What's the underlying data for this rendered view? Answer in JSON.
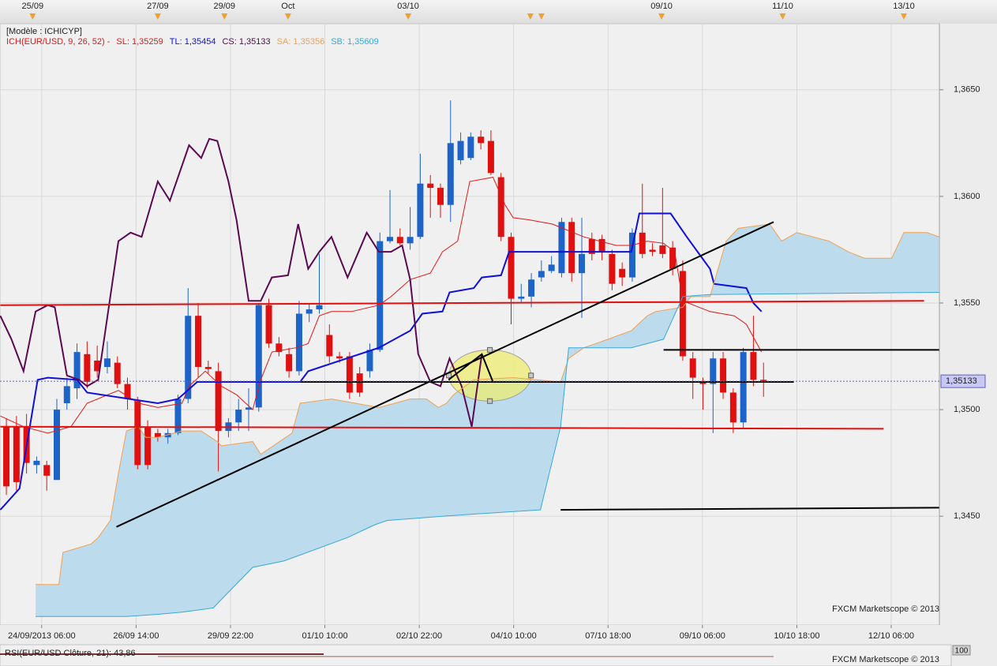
{
  "chart_data": {
    "type": "candlestick",
    "model_label": "[Modèle : ICHICYP]",
    "indicator_label": "ICH(EUR/USD, 9, 26, 52) -",
    "indicator_color": "#e01818",
    "grid": true,
    "xlim": [
      -0.63,
      92.42
    ],
    "ylim": [
      1.3399,
      1.3681
    ],
    "yticks": [
      {
        "value": 1.345,
        "label": "1,3450"
      },
      {
        "value": 1.35,
        "label": "1,3500"
      },
      {
        "value": 1.355,
        "label": "1,3550"
      },
      {
        "value": 1.36,
        "label": "1,3600"
      },
      {
        "value": 1.365,
        "label": "1,3650"
      }
    ],
    "xticks": [
      {
        "value": 3.5,
        "label": "24/09/2013 06:00"
      },
      {
        "value": 12.85,
        "label": "26/09 14:00"
      },
      {
        "value": 22.2,
        "label": "29/09 22:00"
      },
      {
        "value": 31.55,
        "label": "01/10 10:00"
      },
      {
        "value": 40.9,
        "label": "02/10 22:00"
      },
      {
        "value": 50.25,
        "label": "04/10 10:00"
      },
      {
        "value": 59.6,
        "label": "07/10 18:00"
      },
      {
        "value": 68.95,
        "label": "09/10 06:00"
      },
      {
        "value": 78.3,
        "label": "10/10 18:00"
      },
      {
        "value": 87.65,
        "label": "12/10 06:00"
      }
    ],
    "top_ticks": [
      {
        "value": 2.6,
        "label": "25/09"
      },
      {
        "value": 15.0,
        "label": "27/09"
      },
      {
        "value": 21.6,
        "label": "29/09"
      },
      {
        "value": 27.9,
        "label": "Oct"
      },
      {
        "value": 39.8,
        "label": "03/10"
      },
      {
        "value": 64.9,
        "label": "09/10"
      },
      {
        "value": 76.9,
        "label": "11/10"
      },
      {
        "value": 88.9,
        "label": "13/10"
      }
    ],
    "event_markers": [
      2.6,
      15.0,
      21.6,
      27.9,
      39.8,
      51.9,
      53.0,
      64.9,
      76.9,
      88.9
    ],
    "event_color": "#f0a030",
    "candles": {
      "up_color": "#1e64c8",
      "down_color": "#e01010",
      "open": [
        1.3492,
        1.3492,
        1.3492,
        1.3474,
        1.3474,
        1.3467,
        1.3503,
        1.351,
        1.3526,
        1.3523,
        1.352,
        1.3522,
        1.3512,
        1.3504,
        1.3492,
        1.3489,
        1.3487,
        1.3489,
        1.3505,
        1.3544,
        1.352,
        1.3518,
        1.349,
        1.3494,
        1.35,
        1.3501,
        1.3549,
        1.3531,
        1.3526,
        1.3518,
        1.3545,
        1.3547,
        1.3535,
        1.3525,
        1.3525,
        1.3517,
        1.3518,
        1.3528,
        1.3579,
        1.3581,
        1.3578,
        1.3581,
        1.3606,
        1.3604,
        1.3596,
        1.3617,
        1.3618,
        1.3628,
        1.3626,
        1.3609,
        1.3581,
        1.3552,
        1.3553,
        1.3562,
        1.3565,
        1.3564,
        1.3588,
        1.3564,
        1.358,
        1.358,
        1.3573,
        1.3566,
        1.3562,
        1.3583,
        1.3575,
        1.3577,
        1.3576,
        1.3565,
        1.3524,
        1.3513,
        1.3512,
        1.3524,
        1.3508,
        1.3494,
        1.3527,
        1.3514
      ],
      "high": [
        1.3496,
        1.3497,
        1.3498,
        1.3478,
        1.3476,
        1.3505,
        1.3515,
        1.3531,
        1.3532,
        1.353,
        1.3532,
        1.3525,
        1.3515,
        1.3506,
        1.3495,
        1.3491,
        1.3491,
        1.3507,
        1.3557,
        1.355,
        1.3523,
        1.3522,
        1.3496,
        1.3505,
        1.351,
        1.355,
        1.3552,
        1.3534,
        1.3529,
        1.3551,
        1.355,
        1.3573,
        1.354,
        1.3527,
        1.3527,
        1.352,
        1.3531,
        1.3583,
        1.3603,
        1.3585,
        1.3595,
        1.362,
        1.361,
        1.3606,
        1.3645,
        1.363,
        1.363,
        1.3631,
        1.3631,
        1.3611,
        1.3583,
        1.3559,
        1.3564,
        1.357,
        1.3572,
        1.359,
        1.359,
        1.359,
        1.3583,
        1.3582,
        1.3575,
        1.3569,
        1.3585,
        1.3606,
        1.3578,
        1.3604,
        1.3579,
        1.357,
        1.3527,
        1.3515,
        1.3527,
        1.3527,
        1.351,
        1.3529,
        1.3544,
        1.3522
      ],
      "low": [
        1.346,
        1.3462,
        1.347,
        1.347,
        1.3462,
        1.3467,
        1.35,
        1.3505,
        1.351,
        1.3515,
        1.3517,
        1.351,
        1.35,
        1.3472,
        1.3472,
        1.3485,
        1.3484,
        1.3488,
        1.3503,
        1.3515,
        1.3517,
        1.3471,
        1.3487,
        1.349,
        1.349,
        1.3499,
        1.3529,
        1.3525,
        1.3515,
        1.3516,
        1.3541,
        1.3545,
        1.3522,
        1.3522,
        1.3505,
        1.3506,
        1.3515,
        1.3527,
        1.3578,
        1.3577,
        1.3575,
        1.358,
        1.359,
        1.359,
        1.3588,
        1.3615,
        1.3617,
        1.3622,
        1.361,
        1.3579,
        1.354,
        1.355,
        1.3548,
        1.356,
        1.3564,
        1.3562,
        1.356,
        1.3543,
        1.357,
        1.357,
        1.3556,
        1.3558,
        1.356,
        1.3571,
        1.3572,
        1.3571,
        1.3563,
        1.3523,
        1.3505,
        1.35,
        1.3489,
        1.3505,
        1.3489,
        1.3491,
        1.3511,
        1.3506
      ],
      "close": [
        1.3464,
        1.3466,
        1.3475,
        1.3476,
        1.3469,
        1.35,
        1.3511,
        1.3527,
        1.3513,
        1.3518,
        1.3524,
        1.3512,
        1.3505,
        1.3474,
        1.3474,
        1.3487,
        1.3489,
        1.3505,
        1.3544,
        1.352,
        1.3519,
        1.349,
        1.3494,
        1.35,
        1.3501,
        1.3549,
        1.3531,
        1.3527,
        1.3518,
        1.3545,
        1.3547,
        1.3549,
        1.3525,
        1.3524,
        1.3508,
        1.3508,
        1.3528,
        1.3579,
        1.3581,
        1.3578,
        1.3581,
        1.3606,
        1.3604,
        1.3596,
        1.3625,
        1.3626,
        1.3628,
        1.3625,
        1.3611,
        1.3581,
        1.3552,
        1.3553,
        1.3561,
        1.3565,
        1.3568,
        1.3588,
        1.3564,
        1.3573,
        1.3573,
        1.3574,
        1.3559,
        1.3562,
        1.3583,
        1.3573,
        1.3574,
        1.3573,
        1.3566,
        1.3525,
        1.3515,
        1.3512,
        1.3524,
        1.3508,
        1.3494,
        1.3527,
        1.3514,
        1.3513
      ]
    },
    "cloud_color": "#bcdcee",
    "series": [
      {
        "name": "SL: 1,35259",
        "color": "#e01818",
        "width": 1,
        "x": [
          -0.6,
          1.7,
          4.1,
          6.4,
          8.0,
          11.1,
          13.1,
          15.0,
          17.4,
          18.1,
          19.7,
          21.3,
          22.8,
          24.4,
          25.2,
          26.3,
          28.7,
          29.9,
          31.0,
          32.2,
          34.2,
          36.9,
          38.1,
          40.0,
          42.0,
          43.2,
          44.7,
          45.9,
          48.2,
          49.4,
          50.2,
          51.8,
          54.1,
          57.2,
          60.4,
          61.9,
          63.5,
          65.1,
          66.2,
          67.0,
          69.7,
          72.1,
          73.3,
          74.8
        ],
        "values": [
          1.3497,
          1.3492,
          1.3489,
          1.3492,
          1.3503,
          1.3509,
          1.3503,
          1.3501,
          1.3503,
          1.3511,
          1.3518,
          1.3511,
          1.3507,
          1.35,
          1.3514,
          1.3527,
          1.3529,
          1.3531,
          1.3544,
          1.3546,
          1.3546,
          1.3549,
          1.3553,
          1.3561,
          1.3564,
          1.3574,
          1.3579,
          1.3607,
          1.3609,
          1.3596,
          1.359,
          1.3589,
          1.3587,
          1.3581,
          1.3577,
          1.3577,
          1.3579,
          1.3578,
          1.3574,
          1.3551,
          1.3546,
          1.3544,
          1.354,
          1.3527
        ]
      },
      {
        "name": "TL: 1,35454",
        "color": "#1010d8",
        "width": 2,
        "x": [
          -0.6,
          1.3,
          3.1,
          4.1,
          7.0,
          8.0,
          15.0,
          17.0,
          18.9,
          29.1,
          29.9,
          36.9,
          40.0,
          41.2,
          43.2,
          43.9,
          46.3,
          47.1,
          49.0,
          49.8,
          61.9,
          62.7,
          65.8,
          67.4,
          69.7,
          70.1,
          73.3,
          74.0,
          74.8
        ],
        "values": [
          1.3453,
          1.3463,
          1.3514,
          1.3515,
          1.3514,
          1.3508,
          1.3503,
          1.3505,
          1.3513,
          1.3513,
          1.3518,
          1.3529,
          1.3537,
          1.3545,
          1.3546,
          1.3555,
          1.3557,
          1.3562,
          1.3563,
          1.3574,
          1.3574,
          1.3592,
          1.3592,
          1.3581,
          1.3566,
          1.3559,
          1.3557,
          1.355,
          1.3546
        ]
      },
      {
        "name": "CS: 1,35133",
        "color": "#5a0a50",
        "width": 2,
        "x": [
          -0.6,
          0.5,
          1.7,
          2.9,
          4.1,
          4.8,
          6.0,
          7.2,
          8.0,
          9.1,
          11.1,
          12.3,
          13.4,
          15.0,
          16.2,
          18.1,
          19.3,
          20.1,
          20.9,
          22.0,
          22.8,
          24.0,
          25.2,
          26.3,
          27.9,
          28.9,
          29.9,
          31.0,
          32.2,
          33.8,
          35.7,
          36.9,
          38.1,
          39.2,
          40.0,
          40.8,
          42.0,
          43.0,
          43.9,
          45.1,
          46.1,
          47.1
        ],
        "values": [
          1.3544,
          1.3533,
          1.3518,
          1.3546,
          1.3549,
          1.3548,
          1.3516,
          1.3514,
          1.3511,
          1.3514,
          1.3579,
          1.3583,
          1.3581,
          1.3607,
          1.3598,
          1.3624,
          1.3618,
          1.3627,
          1.3626,
          1.3607,
          1.3589,
          1.3551,
          1.3551,
          1.3562,
          1.3563,
          1.3587,
          1.3566,
          1.3574,
          1.3581,
          1.3562,
          1.3583,
          1.3574,
          1.3574,
          1.3577,
          1.3561,
          1.3526,
          1.3513,
          1.3511,
          1.3524,
          1.3511,
          1.3492,
          1.3526
        ]
      },
      {
        "name": "SA: 1,35356",
        "color": "#f0a050",
        "width": 1,
        "x": [
          2.9,
          5.2,
          5.6,
          8.4,
          9.1,
          10.3,
          11.1,
          11.9,
          13.1,
          13.8,
          15.0,
          17.4,
          19.3,
          20.9,
          21.3,
          24.4,
          25.2,
          28.3,
          29.1,
          32.2,
          36.9,
          38.5,
          40.0,
          41.6,
          42.8,
          43.6,
          44.3,
          46.3,
          50.2,
          52.5,
          54.9,
          55.7,
          57.2,
          59.6,
          61.9,
          63.5,
          64.3,
          67.0,
          67.8,
          69.7,
          71.3,
          72.5,
          75.6,
          76.8,
          78.3,
          81.5,
          83.4,
          85.0,
          87.7,
          88.9,
          91.2,
          92.4
        ],
        "values": [
          1.3418,
          1.3418,
          1.3433,
          1.3437,
          1.344,
          1.3448,
          1.347,
          1.349,
          1.3492,
          1.3487,
          1.3487,
          1.349,
          1.349,
          1.3485,
          1.3483,
          1.3485,
          1.3479,
          1.3489,
          1.3503,
          1.3505,
          1.3501,
          1.3503,
          1.3505,
          1.3505,
          1.3501,
          1.3503,
          1.3507,
          1.3514,
          1.3515,
          1.3514,
          1.3513,
          1.3524,
          1.3529,
          1.3533,
          1.3537,
          1.3544,
          1.3546,
          1.3548,
          1.3553,
          1.3553,
          1.3579,
          1.3585,
          1.3587,
          1.3579,
          1.3583,
          1.3579,
          1.3574,
          1.3571,
          1.3571,
          1.3583,
          1.3583,
          1.3581
        ]
      },
      {
        "name": "SB: 1,35609",
        "color": "#38a8d8",
        "width": 1,
        "x": [
          2.9,
          11.9,
          15.0,
          17.4,
          20.5,
          21.3,
          24.4,
          27.5,
          33.8,
          36.5,
          37.7,
          43.2,
          46.3,
          52.9,
          54.9,
          55.7,
          61.9,
          65.1,
          67.0,
          69.7,
          92.4
        ],
        "values": [
          1.3403,
          1.3403,
          1.3404,
          1.3405,
          1.3407,
          1.3411,
          1.3426,
          1.3429,
          1.344,
          1.3446,
          1.3448,
          1.345,
          1.3451,
          1.3453,
          1.3492,
          1.3529,
          1.3529,
          1.3533,
          1.3553,
          1.3554,
          1.3555
        ]
      }
    ],
    "drawings": [
      {
        "type": "ellipse",
        "x": [
          47.9
        ],
        "y": [
          1.3516
        ],
        "rx": 4.07,
        "ry": 0.0012,
        "color": "#eeee70"
      },
      {
        "type": "line",
        "x": [
          -0.6,
          90.9
        ],
        "y": [
          1.3549,
          1.3551
        ],
        "color": "#e01010"
      },
      {
        "type": "line",
        "x": [
          -0.6,
          86.9
        ],
        "y": [
          1.3492,
          1.3491
        ],
        "color": "#e01010"
      },
      {
        "type": "line",
        "x": [
          65.1,
          92.4
        ],
        "y": [
          1.3528,
          1.3528
        ],
        "color": "#000000"
      },
      {
        "type": "line",
        "x": [
          54.9,
          92.4
        ],
        "y": [
          1.3453,
          1.3454
        ],
        "color": "#000000"
      },
      {
        "type": "line",
        "x": [
          29.1,
          78.0
        ],
        "y": [
          1.3513,
          1.3513
        ],
        "color": "#000000"
      },
      {
        "type": "line",
        "x": [
          10.9,
          76.0
        ],
        "y": [
          1.3445,
          1.3588
        ],
        "color": "#000000"
      },
      {
        "type": "line",
        "x": [
          43.8,
          47.1,
          48.2
        ],
        "y": [
          1.3514,
          1.3526,
          1.3513
        ],
        "color": "#000000"
      }
    ],
    "last_price": {
      "value": 1.35133,
      "label": "1,35133"
    },
    "watermark": "FXCM Marketscope © 2013",
    "rsi_label": "RSI(EUR/USD Clôture, 21): 43,86",
    "rsi_tick": 100
  }
}
